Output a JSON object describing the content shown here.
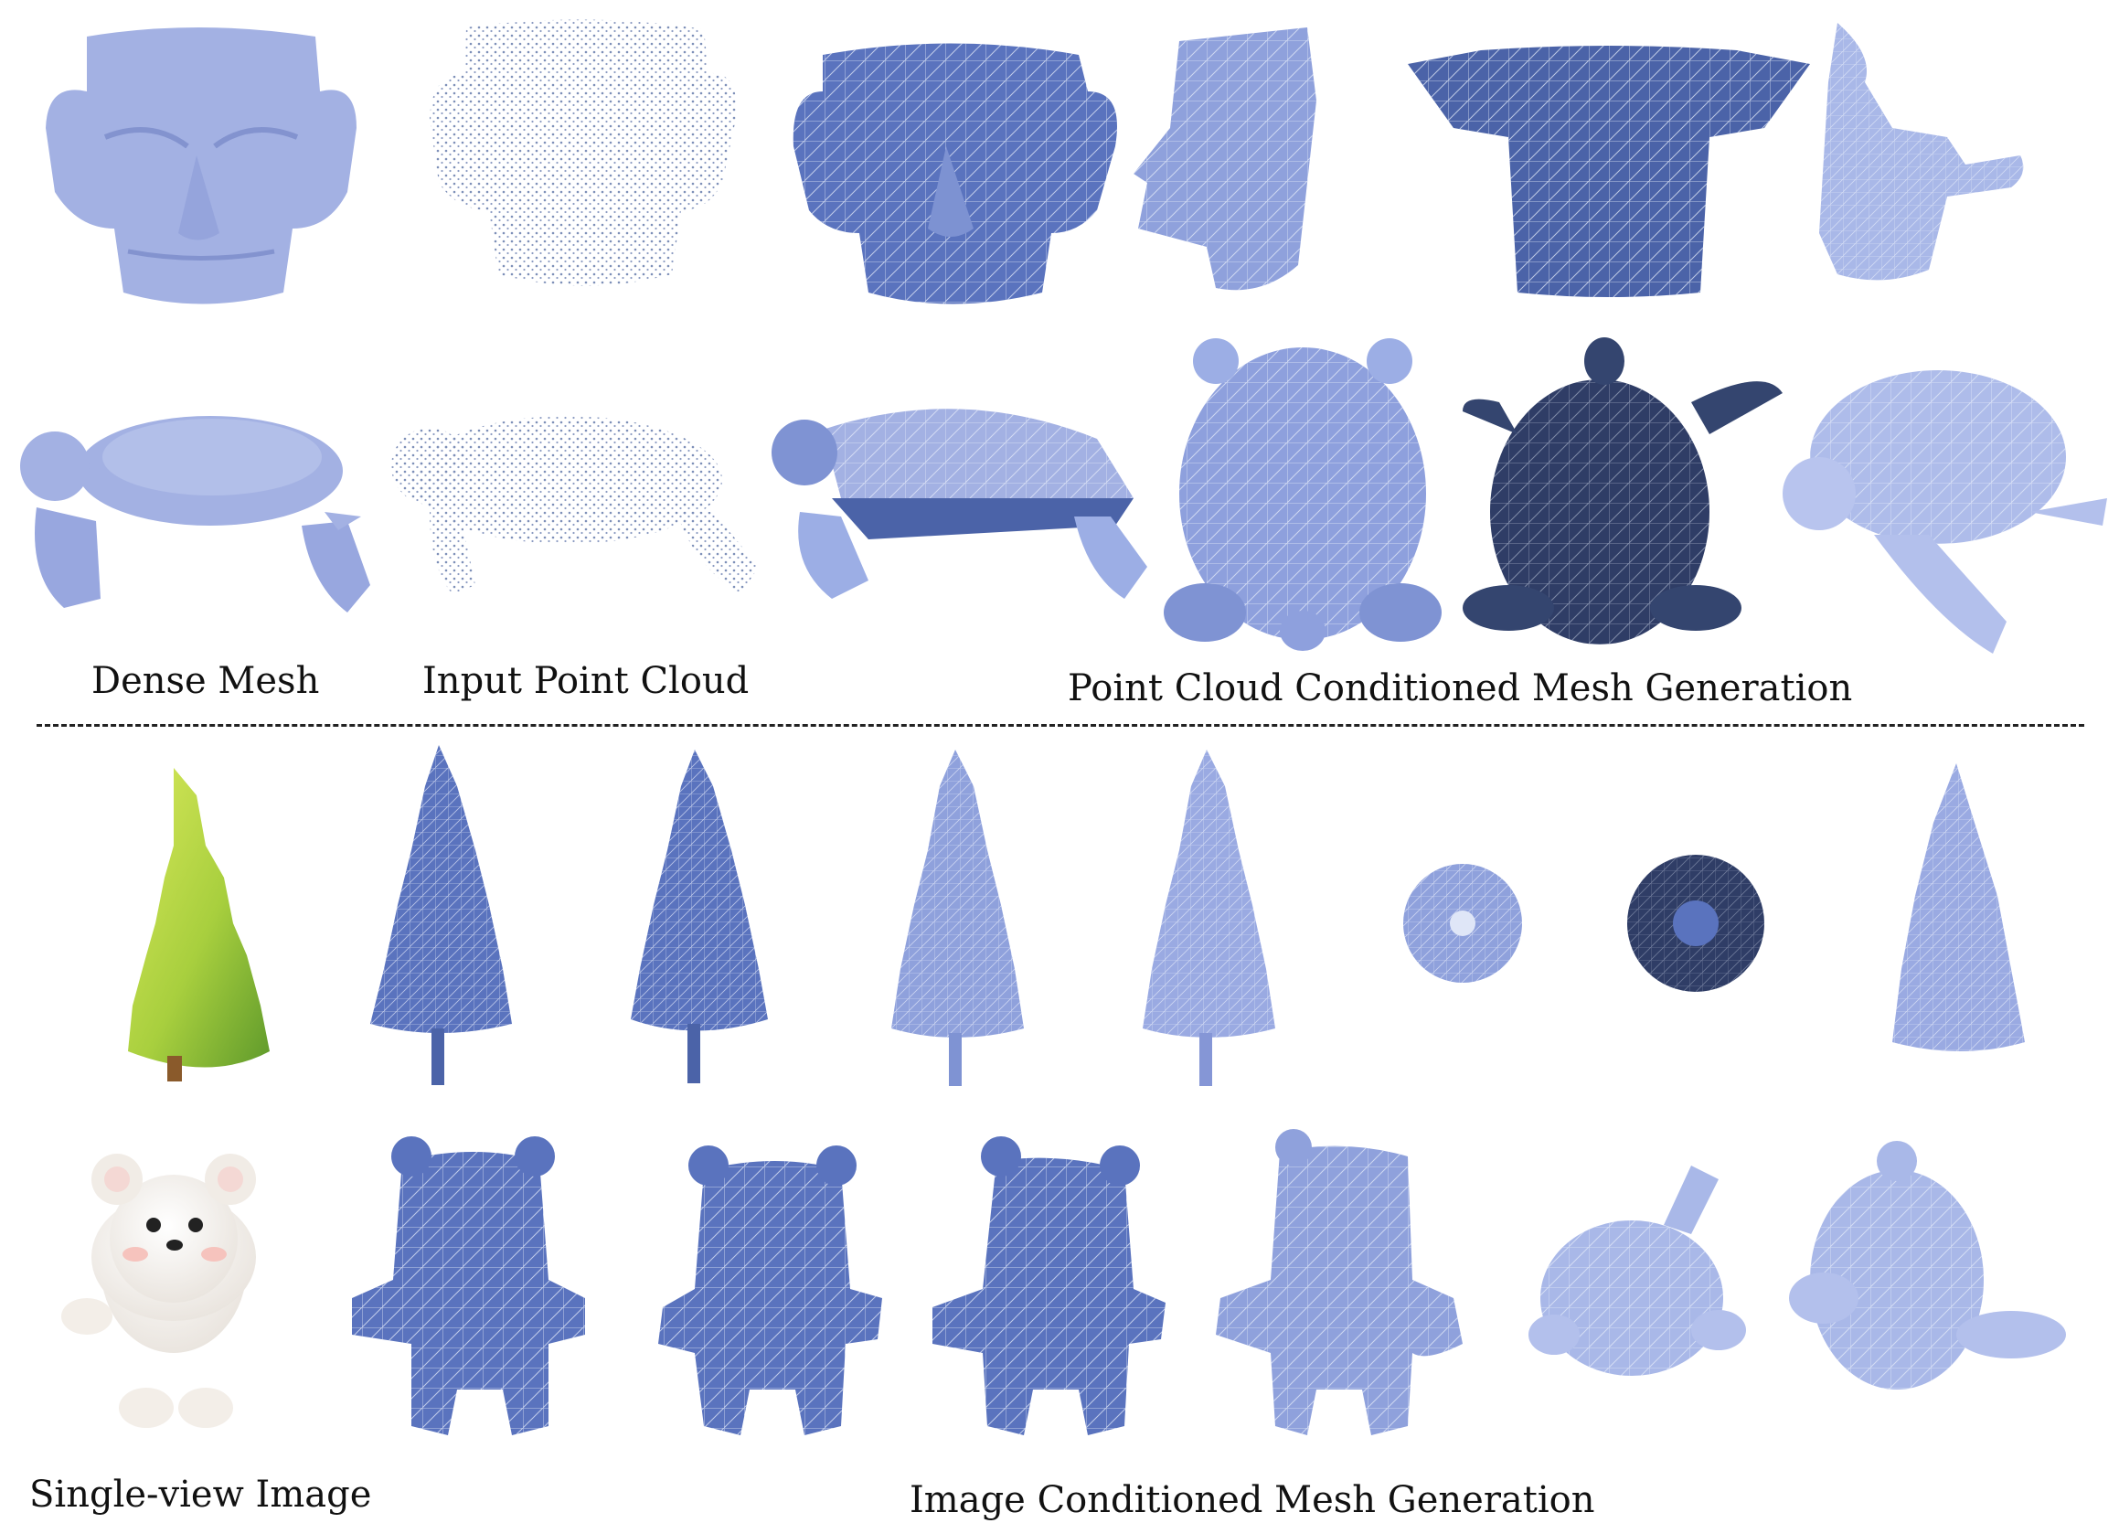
{
  "figure": {
    "labels": {
      "dense_mesh": "Dense Mesh",
      "input_point_cloud": "Input Point Cloud",
      "point_cloud_generation": "Point Cloud Conditioned Mesh Generation",
      "single_view_image": "Single-view Image",
      "image_generation": "Image Conditioned Mesh Generation"
    },
    "colors": {
      "mesh_light": "#a3b1e3",
      "mesh_mid": "#6f86c9",
      "mesh_dark": "#4b63a8",
      "mesh_navy": "#2f3d66",
      "wire": "#dfe6f7",
      "points": "#7d8fb8",
      "tree_green": "#bfdc4e",
      "tree_trunk": "#8a5a2b",
      "bear_white": "#f5f2ee"
    },
    "objects": [
      "mask-dense-mesh",
      "mask-point-cloud",
      "mask-mesh-front",
      "mask-mesh-side",
      "mask-mesh-back",
      "mask-mesh-top",
      "turtle-dense-mesh",
      "turtle-point-cloud",
      "turtle-mesh-side",
      "turtle-mesh-top",
      "turtle-mesh-bottom",
      "turtle-mesh-angle",
      "tree-image",
      "tree-mesh",
      "bear-image",
      "bear-mesh"
    ]
  }
}
